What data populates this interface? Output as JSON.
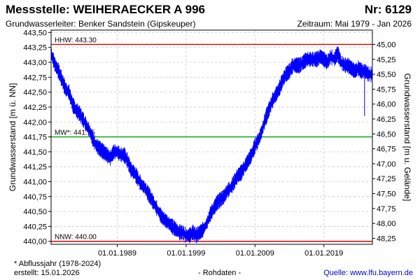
{
  "header": {
    "title": "Messstelle: WEIHERAECKER A 996",
    "number": "Nr: 6129",
    "aquifer": "Grundwasserleiter:   Benker Sandstein (Gipskeuper)",
    "period": "Zeitraum: Mai 1979 - Jan 2026"
  },
  "footer": {
    "footnote": "* Abflussjahr (1978-2024)",
    "created": "erstellt:  15.01.2026",
    "raw": "- Rohdaten -",
    "source": "Quelle:  www.lfu.bayern.de"
  },
  "colors": {
    "series": "#0000ff",
    "hhw": "#e00000",
    "nnw": "#e00000",
    "mw": "#00a000",
    "grid": "#c8c8c8"
  },
  "chart_data": {
    "type": "line",
    "title": "Messstelle: WEIHERAECKER A 996",
    "ylabel": "Grundwasserstand [m ü. NN]",
    "ylabel_right": "Grundwasserstand [m u. Gelände]",
    "xlim": [
      1979.4,
      2026.04
    ],
    "ylim": [
      439.95,
      443.54
    ],
    "grid": true,
    "x_ticks": [
      {
        "value": 1989.0,
        "label": "01.01.1989"
      },
      {
        "value": 1999.0,
        "label": "01.01.1999"
      },
      {
        "value": 2009.0,
        "label": "01.01.2009"
      },
      {
        "value": 2019.0,
        "label": "01.01.2019"
      }
    ],
    "y_ticks": [
      440.0,
      440.25,
      440.5,
      440.75,
      441.0,
      441.25,
      441.5,
      441.75,
      442.0,
      442.25,
      442.5,
      442.75,
      443.0,
      443.25,
      443.5
    ],
    "y_tick_labels": [
      "440,00",
      "440,25",
      "440,50",
      "440,75",
      "441,00",
      "441,25",
      "441,50",
      "441,75",
      "442,00",
      "442,25",
      "442,50",
      "442,75",
      "443,00",
      "443,25",
      "443,50"
    ],
    "y_right_ticks": [
      {
        "value": 45.0,
        "label": "45,00"
      },
      {
        "value": 45.25,
        "label": "45,25"
      },
      {
        "value": 45.5,
        "label": "45,50"
      },
      {
        "value": 45.75,
        "label": "45,75"
      },
      {
        "value": 46.0,
        "label": "46,00"
      },
      {
        "value": 46.25,
        "label": "46,25"
      },
      {
        "value": 46.5,
        "label": "46,50"
      },
      {
        "value": 46.75,
        "label": "46,75"
      },
      {
        "value": 47.0,
        "label": "47,00"
      },
      {
        "value": 47.25,
        "label": "47,25"
      },
      {
        "value": 47.5,
        "label": "47,50"
      },
      {
        "value": 47.75,
        "label": "47,75"
      },
      {
        "value": 48.0,
        "label": "48,00"
      },
      {
        "value": 48.25,
        "label": "48,25"
      }
    ],
    "reference_lines": [
      {
        "key": "hhw",
        "value": 443.3,
        "label": "HHW: 443.30"
      },
      {
        "key": "mw",
        "value": 441.75,
        "label": "MW*: 441.75"
      },
      {
        "key": "nnw",
        "value": 440.0,
        "label": "NNW: 440.00"
      }
    ],
    "series": [
      {
        "x": [
          1979.4,
          1980.0,
          1980.5,
          1981.0,
          1981.5,
          1982.0,
          1982.5,
          1983.0,
          1983.5,
          1984.0,
          1984.5,
          1985.0,
          1985.5,
          1986.0,
          1986.5,
          1987.0,
          1987.5,
          1988.0,
          1988.5,
          1989.0,
          1989.5,
          1990.0,
          1990.5,
          1991.0,
          1991.5,
          1992.0,
          1992.5,
          1993.0,
          1993.5,
          1994.0,
          1994.5,
          1995.0,
          1995.5,
          1996.0,
          1996.5,
          1997.0,
          1997.5,
          1998.0,
          1998.5,
          1999.0,
          1999.5,
          2000.0,
          2000.5,
          2001.0,
          2001.5,
          2002.0,
          2002.5,
          2003.0,
          2003.5,
          2004.0,
          2004.5,
          2005.0,
          2005.5,
          2006.0,
          2006.5,
          2007.0,
          2007.5,
          2008.0,
          2008.5,
          2009.0,
          2009.5,
          2010.0,
          2010.5,
          2011.0,
          2011.5,
          2012.0,
          2012.5,
          2013.0,
          2013.5,
          2014.0,
          2014.5,
          2015.0,
          2015.5,
          2016.0,
          2016.5,
          2017.0,
          2017.5,
          2018.0,
          2018.5,
          2019.0,
          2019.5,
          2020.0,
          2020.5,
          2021.0,
          2021.5,
          2022.0,
          2022.5,
          2023.0,
          2023.5,
          2024.0,
          2024.5,
          2025.0,
          2025.5,
          2026.0
        ],
        "y": [
          443.15,
          442.95,
          442.85,
          442.7,
          442.55,
          442.5,
          442.3,
          442.2,
          442.15,
          442.05,
          441.95,
          441.85,
          441.7,
          441.6,
          441.55,
          441.5,
          441.45,
          441.4,
          441.5,
          441.5,
          441.45,
          441.45,
          441.35,
          441.2,
          441.15,
          441.05,
          440.95,
          440.9,
          440.8,
          440.7,
          440.6,
          440.5,
          440.4,
          440.35,
          440.3,
          440.25,
          440.2,
          440.15,
          440.15,
          440.1,
          440.1,
          440.15,
          440.1,
          440.15,
          440.2,
          440.3,
          440.45,
          440.55,
          440.65,
          440.7,
          440.75,
          440.85,
          440.9,
          441.0,
          441.1,
          441.15,
          441.25,
          441.35,
          441.45,
          441.6,
          441.7,
          441.85,
          442.05,
          442.2,
          442.35,
          442.45,
          442.55,
          442.7,
          442.8,
          442.85,
          442.95,
          442.95,
          442.95,
          443.0,
          443.05,
          443.05,
          443.05,
          443.05,
          443.1,
          443.05,
          443.0,
          443.1,
          443.05,
          443.15,
          443.0,
          442.95,
          442.95,
          442.9,
          442.85,
          442.9,
          442.85,
          442.85,
          442.8,
          442.8
        ],
        "min_events": [
          {
            "x": 2024.9,
            "y": 442.1
          }
        ]
      }
    ]
  }
}
